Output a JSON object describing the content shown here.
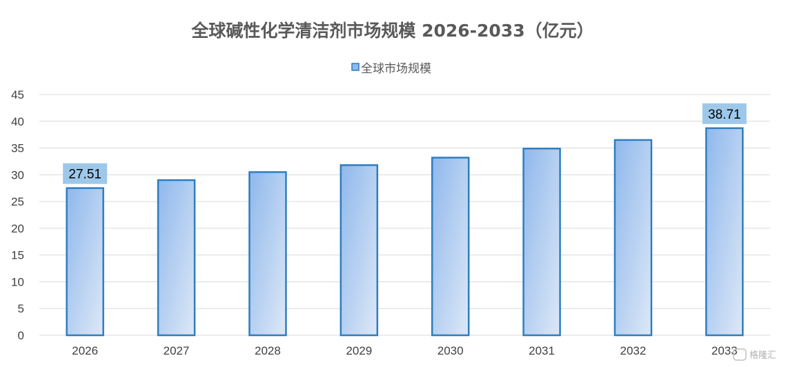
{
  "chart_data": {
    "type": "bar",
    "title": "全球碱性化学清洁剂市场规模 2026-2033（亿元）",
    "xlabel": "",
    "ylabel": "",
    "categories": [
      "2026",
      "2027",
      "2028",
      "2029",
      "2030",
      "2031",
      "2032",
      "2033"
    ],
    "series": [
      {
        "name": "全球市场规模",
        "values": [
          27.51,
          29.0,
          30.5,
          31.8,
          33.2,
          34.9,
          36.5,
          38.71
        ]
      }
    ],
    "data_labels": [
      {
        "index": 0,
        "text": "27.51"
      },
      {
        "index": 7,
        "text": "38.71"
      }
    ],
    "ylim": [
      0,
      45
    ],
    "yticks": [
      0,
      5,
      10,
      15,
      20,
      25,
      30,
      35,
      40,
      45
    ],
    "grid": true,
    "legend_position": "top-center",
    "colors": {
      "bar_fill_start": "#8fb8ec",
      "bar_fill_end": "#dde8f7",
      "bar_border": "#2e7dbf",
      "label_bg": "#9dc8ea",
      "grid": "#d9d9d9",
      "title": "#595959",
      "tick": "#404040"
    }
  },
  "watermark": "格隆汇"
}
